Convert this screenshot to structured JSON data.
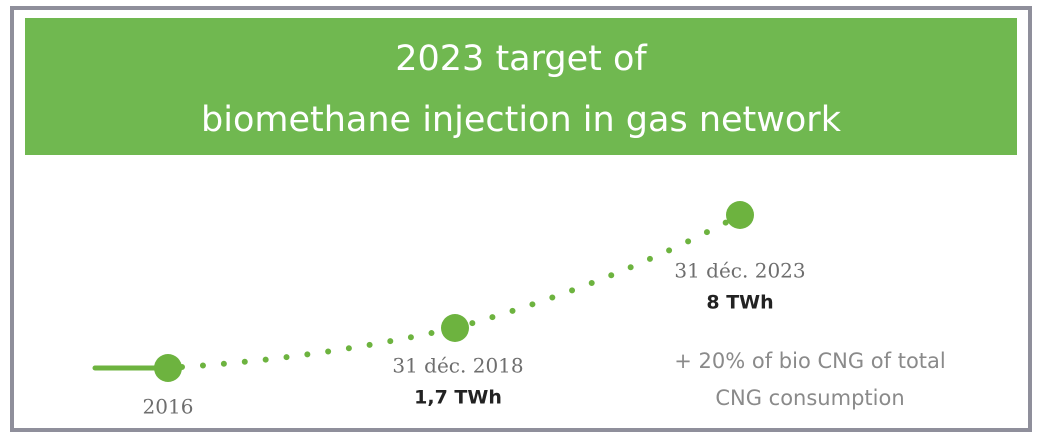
{
  "header": {
    "title_lines": [
      "2023 target of",
      "biomethane injection in gas network"
    ]
  },
  "milestones": [
    {
      "date": "2016"
    },
    {
      "date": "31 déc. 2018",
      "value": "1,7 TWh"
    },
    {
      "date": "31 déc. 2023",
      "value": "8 TWh"
    }
  ],
  "note": {
    "lines": [
      "+ 20% of bio CNG of total",
      "CNG consumption"
    ]
  }
}
